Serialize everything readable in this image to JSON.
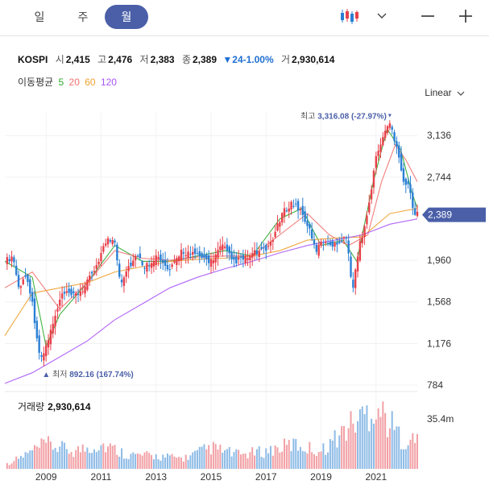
{
  "tabs": [
    {
      "label": "일",
      "active": false
    },
    {
      "label": "주",
      "active": false
    },
    {
      "label": "월",
      "active": true
    }
  ],
  "toolbar": {
    "chart_type_icon": "candlestick-icon",
    "dropdown_icon": "chevron-down-icon",
    "zoom_out_icon": "minus-icon",
    "zoom_in_icon": "plus-icon"
  },
  "info": {
    "name": "KOSPI",
    "open_label": "시",
    "open": "2,415",
    "high_label": "고",
    "high": "2,476",
    "low_label": "저",
    "low": "2,383",
    "close_label": "종",
    "close": "2,389",
    "change": "24",
    "change_pct": "-1.00%",
    "volume_label": "거",
    "volume": "2,930,614"
  },
  "moving_average": {
    "label": "이동평균",
    "periods": [
      {
        "label": "5",
        "color": "#2ea82e"
      },
      {
        "label": "20",
        "color": "#f07070"
      },
      {
        "label": "60",
        "color": "#f0a030"
      },
      {
        "label": "120",
        "color": "#a855f7"
      }
    ]
  },
  "scale_label": "Linear",
  "volume_panel": {
    "label": "거래량",
    "value": "2,930,614",
    "axis_max_label": "35.4m"
  },
  "colors": {
    "up": "#e8404a",
    "down": "#2a7fd4",
    "accent": "#4a5fa8",
    "current_price_bg": "#4a5fa8"
  },
  "chart_data": {
    "type": "candlestick",
    "interval": "monthly",
    "y_ticks": [
      784,
      1176,
      1568,
      1960,
      2744,
      3136
    ],
    "y_tick_labels": [
      "784",
      "1,176",
      "1,568",
      "1,960",
      "2,744",
      "3,136"
    ],
    "y_range": [
      784,
      3350
    ],
    "x_tick_labels": [
      "2009",
      "2011",
      "2013",
      "2015",
      "2017",
      "2019",
      "2021"
    ],
    "x_tick_years": [
      2009,
      2011,
      2013,
      2015,
      2017,
      2019,
      2021
    ],
    "x_range": [
      2007.5,
      2022.5
    ],
    "current_price_label": "2,389",
    "current_price": 2389,
    "high_annotation": {
      "label_prefix": "최고",
      "value_label": "3,316.08",
      "pct_label": "(-27.97%)",
      "value": 3316.08,
      "year": 2021.5
    },
    "low_annotation": {
      "label_prefix": "최저",
      "value_label": "892.16",
      "pct_label": "(167.74%)",
      "value": 892.16,
      "year": 2008.8
    },
    "close_path": [
      [
        2007.5,
        1950
      ],
      [
        2007.8,
        2000
      ],
      [
        2008.0,
        1700
      ],
      [
        2008.3,
        1830
      ],
      [
        2008.5,
        1550
      ],
      [
        2008.8,
        1000
      ],
      [
        2009.0,
        1150
      ],
      [
        2009.3,
        1400
      ],
      [
        2009.6,
        1650
      ],
      [
        2010.0,
        1620
      ],
      [
        2010.4,
        1700
      ],
      [
        2010.8,
        1900
      ],
      [
        2011.2,
        2150
      ],
      [
        2011.5,
        2150
      ],
      [
        2011.7,
        1750
      ],
      [
        2012.0,
        1900
      ],
      [
        2012.3,
        2000
      ],
      [
        2012.6,
        1900
      ],
      [
        2013.0,
        2000
      ],
      [
        2013.5,
        1850
      ],
      [
        2013.9,
        2050
      ],
      [
        2014.5,
        2000
      ],
      [
        2015.0,
        1950
      ],
      [
        2015.4,
        2100
      ],
      [
        2015.8,
        1950
      ],
      [
        2016.2,
        1970
      ],
      [
        2016.6,
        2030
      ],
      [
        2017.0,
        2050
      ],
      [
        2017.3,
        2200
      ],
      [
        2017.6,
        2400
      ],
      [
        2017.9,
        2500
      ],
      [
        2018.2,
        2450
      ],
      [
        2018.5,
        2300
      ],
      [
        2018.8,
        2050
      ],
      [
        2019.1,
        2150
      ],
      [
        2019.5,
        2100
      ],
      [
        2019.9,
        2200
      ],
      [
        2020.15,
        1700
      ],
      [
        2020.4,
        2100
      ],
      [
        2020.7,
        2400
      ],
      [
        2020.95,
        2870
      ],
      [
        2021.2,
        3100
      ],
      [
        2021.5,
        3250
      ],
      [
        2021.8,
        3000
      ],
      [
        2022.0,
        2700
      ],
      [
        2022.2,
        2650
      ],
      [
        2022.4,
        2400
      ],
      [
        2022.5,
        2389
      ]
    ],
    "ma_paths": [
      {
        "period": "5",
        "points": [
          [
            2007.5,
            1950
          ],
          [
            2008.5,
            1800
          ],
          [
            2009.0,
            1150
          ],
          [
            2009.5,
            1450
          ],
          [
            2010.5,
            1750
          ],
          [
            2011.5,
            2100
          ],
          [
            2012.5,
            1950
          ],
          [
            2013.5,
            1950
          ],
          [
            2014.5,
            2000
          ],
          [
            2015.5,
            2050
          ],
          [
            2016.5,
            2000
          ],
          [
            2017.5,
            2350
          ],
          [
            2018.3,
            2450
          ],
          [
            2019.0,
            2100
          ],
          [
            2019.8,
            2150
          ],
          [
            2020.3,
            1950
          ],
          [
            2020.9,
            2700
          ],
          [
            2021.4,
            3200
          ],
          [
            2021.9,
            3000
          ],
          [
            2022.3,
            2600
          ],
          [
            2022.5,
            2450
          ]
        ]
      },
      {
        "period": "20",
        "points": [
          [
            2007.5,
            1700
          ],
          [
            2008.5,
            1850
          ],
          [
            2009.5,
            1500
          ],
          [
            2010.5,
            1750
          ],
          [
            2011.5,
            2050
          ],
          [
            2012.5,
            1980
          ],
          [
            2013.5,
            1960
          ],
          [
            2014.5,
            1990
          ],
          [
            2015.5,
            2000
          ],
          [
            2016.5,
            2000
          ],
          [
            2017.5,
            2200
          ],
          [
            2018.5,
            2400
          ],
          [
            2019.3,
            2200
          ],
          [
            2020.0,
            2100
          ],
          [
            2020.7,
            2200
          ],
          [
            2021.2,
            2700
          ],
          [
            2021.7,
            3050
          ],
          [
            2022.1,
            2900
          ],
          [
            2022.5,
            2700
          ]
        ]
      },
      {
        "period": "60",
        "points": [
          [
            2007.5,
            1250
          ],
          [
            2008.5,
            1650
          ],
          [
            2009.5,
            1700
          ],
          [
            2010.5,
            1750
          ],
          [
            2011.5,
            1850
          ],
          [
            2012.5,
            1900
          ],
          [
            2013.5,
            1950
          ],
          [
            2014.5,
            1970
          ],
          [
            2015.5,
            1980
          ],
          [
            2016.5,
            2000
          ],
          [
            2017.5,
            2050
          ],
          [
            2018.5,
            2150
          ],
          [
            2019.5,
            2170
          ],
          [
            2020.5,
            2180
          ],
          [
            2021.5,
            2400
          ],
          [
            2022.5,
            2450
          ]
        ]
      },
      {
        "period": "120",
        "points": [
          [
            2007.5,
            800
          ],
          [
            2008.5,
            900
          ],
          [
            2009.5,
            1050
          ],
          [
            2010.5,
            1200
          ],
          [
            2011.5,
            1400
          ],
          [
            2012.5,
            1550
          ],
          [
            2013.5,
            1700
          ],
          [
            2014.5,
            1800
          ],
          [
            2015.5,
            1880
          ],
          [
            2016.5,
            1950
          ],
          [
            2017.5,
            2030
          ],
          [
            2018.5,
            2100
          ],
          [
            2019.5,
            2150
          ],
          [
            2020.5,
            2200
          ],
          [
            2021.5,
            2300
          ],
          [
            2022.5,
            2350
          ]
        ]
      }
    ],
    "volume_peaks": [
      [
        2008.0,
        0.15
      ],
      [
        2009.0,
        0.35
      ],
      [
        2010.0,
        0.25
      ],
      [
        2011.0,
        0.35
      ],
      [
        2012.0,
        0.2
      ],
      [
        2013.0,
        0.18
      ],
      [
        2014.0,
        0.15
      ],
      [
        2015.0,
        0.3
      ],
      [
        2016.0,
        0.2
      ],
      [
        2017.0,
        0.25
      ],
      [
        2018.0,
        0.35
      ],
      [
        2019.0,
        0.25
      ],
      [
        2020.0,
        0.6
      ],
      [
        2021.0,
        0.9
      ],
      [
        2022.0,
        0.4
      ]
    ]
  }
}
